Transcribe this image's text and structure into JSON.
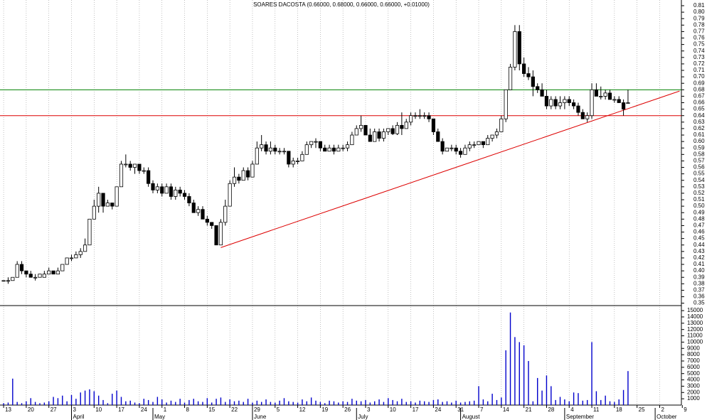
{
  "chart_data": {
    "type": "candlestick",
    "title": "SOARES DACOSTA (0.66000, 0.68000, 0.66000, 0.66000, +0.01000)",
    "xlim": [
      -0.8,
      149.8
    ],
    "ylim": [
      0.3463,
      0.8188
    ],
    "yticks": [
      0.35,
      0.36,
      0.37,
      0.38,
      0.39,
      {
        "value": 0.4,
        "label": "0.40"
      },
      0.41,
      0.42,
      0.43,
      0.44,
      0.45,
      0.46,
      0.47,
      0.48,
      0.49,
      {
        "value": 0.5,
        "label": "0.50"
      },
      0.51,
      0.52,
      0.53,
      0.54,
      0.55,
      0.56,
      0.57,
      0.58,
      0.59,
      {
        "value": 0.6,
        "label": "0.60"
      },
      0.61,
      0.62,
      0.63,
      0.64,
      0.65,
      0.66,
      0.67,
      0.68,
      0.69,
      {
        "value": 0.7,
        "label": "0.70"
      },
      0.71,
      0.72,
      0.73,
      0.74,
      0.75,
      0.76,
      0.77,
      0.78,
      0.79,
      {
        "value": 0.8,
        "label": "0.80"
      },
      0.81
    ],
    "xticks": [
      {
        "value": 0,
        "label": "13"
      },
      {
        "value": 5,
        "label": "20"
      },
      {
        "value": 10,
        "label": "27"
      },
      {
        "value": 15,
        "label": "3"
      },
      {
        "value": 20,
        "label": "10"
      },
      {
        "value": 25,
        "label": "17"
      },
      {
        "value": 30,
        "label": "24"
      },
      {
        "value": 35,
        "label": "1"
      },
      {
        "value": 40,
        "label": "8"
      },
      {
        "value": 45,
        "label": "15"
      },
      {
        "value": 50,
        "label": "22"
      },
      {
        "value": 55,
        "label": "29"
      },
      {
        "value": 60,
        "label": "5"
      },
      {
        "value": 65,
        "label": "12"
      },
      {
        "value": 70,
        "label": "19"
      },
      {
        "value": 75,
        "label": "26"
      },
      {
        "value": 80,
        "label": "3"
      },
      {
        "value": 85,
        "label": "10"
      },
      {
        "value": 90,
        "label": "17"
      },
      {
        "value": 95,
        "label": "24"
      },
      {
        "value": 100,
        "label": "31"
      },
      {
        "value": 105,
        "label": "7"
      },
      {
        "value": 110,
        "label": "14"
      },
      {
        "value": 115,
        "label": "21"
      },
      {
        "value": 120,
        "label": "28"
      },
      {
        "value": 125,
        "label": "4"
      },
      {
        "value": 130,
        "label": "11"
      },
      {
        "value": 135,
        "label": "18"
      },
      {
        "value": 140,
        "label": "25"
      },
      {
        "value": 145,
        "label": "2"
      },
      {
        "value": 150,
        "label": "9"
      }
    ],
    "months": [
      {
        "value": 15,
        "label": "April"
      },
      {
        "value": 33,
        "label": "May"
      },
      {
        "value": 55,
        "label": "June"
      },
      {
        "value": 78,
        "label": "July"
      },
      {
        "value": 101,
        "label": "August"
      },
      {
        "value": 124,
        "label": "September"
      },
      {
        "value": 144,
        "label": "October"
      }
    ],
    "grid": true,
    "up_color": "#ffffff",
    "down_color": "#000000",
    "ohlc": [
      [
        0.385,
        0.385,
        0.385,
        0.385
      ],
      [
        0.385,
        0.39,
        0.38,
        0.385
      ],
      [
        0.385,
        0.39,
        0.385,
        0.39
      ],
      [
        0.39,
        0.415,
        0.39,
        0.41
      ],
      [
        0.41,
        0.415,
        0.395,
        0.4
      ],
      [
        0.4,
        0.4,
        0.39,
        0.395
      ],
      [
        0.395,
        0.4,
        0.39,
        0.39
      ],
      [
        0.39,
        0.395,
        0.385,
        0.39
      ],
      [
        0.39,
        0.395,
        0.39,
        0.395
      ],
      [
        0.39,
        0.4,
        0.39,
        0.395
      ],
      [
        0.395,
        0.405,
        0.395,
        0.4
      ],
      [
        0.4,
        0.4,
        0.395,
        0.395
      ],
      [
        0.395,
        0.405,
        0.395,
        0.4
      ],
      [
        0.4,
        0.41,
        0.4,
        0.41
      ],
      [
        0.41,
        0.42,
        0.41,
        0.42
      ],
      [
        0.42,
        0.425,
        0.415,
        0.42
      ],
      [
        0.42,
        0.43,
        0.42,
        0.425
      ],
      [
        0.425,
        0.435,
        0.42,
        0.43
      ],
      [
        0.43,
        0.45,
        0.43,
        0.44
      ],
      [
        0.44,
        0.48,
        0.44,
        0.48
      ],
      [
        0.48,
        0.51,
        0.48,
        0.5
      ],
      [
        0.5,
        0.53,
        0.49,
        0.52
      ],
      [
        0.52,
        0.52,
        0.49,
        0.5
      ],
      [
        0.5,
        0.51,
        0.5,
        0.505
      ],
      [
        0.505,
        0.505,
        0.495,
        0.5
      ],
      [
        0.5,
        0.53,
        0.5,
        0.53
      ],
      [
        0.53,
        0.57,
        0.53,
        0.565
      ],
      [
        0.565,
        0.58,
        0.56,
        0.565
      ],
      [
        0.565,
        0.57,
        0.555,
        0.56
      ],
      [
        0.56,
        0.565,
        0.55,
        0.565
      ],
      [
        0.565,
        0.565,
        0.55,
        0.555
      ],
      [
        0.555,
        0.56,
        0.55,
        0.555
      ],
      [
        0.555,
        0.56,
        0.53,
        0.535
      ],
      [
        0.535,
        0.54,
        0.52,
        0.525
      ],
      [
        0.525,
        0.535,
        0.52,
        0.53
      ],
      [
        0.53,
        0.535,
        0.515,
        0.52
      ],
      [
        0.52,
        0.535,
        0.52,
        0.53
      ],
      [
        0.53,
        0.535,
        0.51,
        0.515
      ],
      [
        0.515,
        0.53,
        0.51,
        0.525
      ],
      [
        0.525,
        0.53,
        0.515,
        0.52
      ],
      [
        0.52,
        0.525,
        0.51,
        0.515
      ],
      [
        0.515,
        0.52,
        0.5,
        0.505
      ],
      [
        0.505,
        0.51,
        0.49,
        0.49
      ],
      [
        0.49,
        0.5,
        0.485,
        0.495
      ],
      [
        0.495,
        0.5,
        0.48,
        0.48
      ],
      [
        0.48,
        0.485,
        0.47,
        0.475
      ],
      [
        0.475,
        0.475,
        0.465,
        0.47
      ],
      [
        0.47,
        0.47,
        0.44,
        0.44
      ],
      [
        0.44,
        0.48,
        0.44,
        0.475
      ],
      [
        0.475,
        0.51,
        0.47,
        0.5
      ],
      [
        0.5,
        0.54,
        0.5,
        0.535
      ],
      [
        0.535,
        0.56,
        0.53,
        0.545
      ],
      [
        0.545,
        0.55,
        0.535,
        0.54
      ],
      [
        0.54,
        0.56,
        0.54,
        0.555
      ],
      [
        0.555,
        0.56,
        0.54,
        0.545
      ],
      [
        0.545,
        0.57,
        0.545,
        0.565
      ],
      [
        0.565,
        0.6,
        0.565,
        0.59
      ],
      [
        0.59,
        0.61,
        0.585,
        0.595
      ],
      [
        0.595,
        0.6,
        0.58,
        0.585
      ],
      [
        0.585,
        0.6,
        0.58,
        0.59
      ],
      [
        0.59,
        0.595,
        0.58,
        0.585
      ],
      [
        0.585,
        0.59,
        0.58,
        0.585
      ],
      [
        0.585,
        0.59,
        0.58,
        0.585
      ],
      [
        0.585,
        0.585,
        0.56,
        0.565
      ],
      [
        0.565,
        0.575,
        0.56,
        0.57
      ],
      [
        0.57,
        0.575,
        0.565,
        0.57
      ],
      [
        0.57,
        0.585,
        0.57,
        0.58
      ],
      [
        0.58,
        0.6,
        0.58,
        0.595
      ],
      [
        0.595,
        0.6,
        0.59,
        0.6
      ],
      [
        0.6,
        0.605,
        0.59,
        0.6
      ],
      [
        0.6,
        0.6,
        0.585,
        0.59
      ],
      [
        0.59,
        0.595,
        0.585,
        0.585
      ],
      [
        0.585,
        0.595,
        0.585,
        0.59
      ],
      [
        0.59,
        0.595,
        0.58,
        0.585
      ],
      [
        0.585,
        0.595,
        0.585,
        0.59
      ],
      [
        0.59,
        0.595,
        0.585,
        0.59
      ],
      [
        0.59,
        0.6,
        0.585,
        0.595
      ],
      [
        0.595,
        0.615,
        0.595,
        0.61
      ],
      [
        0.61,
        0.625,
        0.61,
        0.62
      ],
      [
        0.62,
        0.64,
        0.615,
        0.625
      ],
      [
        0.625,
        0.625,
        0.61,
        0.61
      ],
      [
        0.61,
        0.62,
        0.6,
        0.6
      ],
      [
        0.6,
        0.62,
        0.6,
        0.615
      ],
      [
        0.615,
        0.62,
        0.6,
        0.605
      ],
      [
        0.605,
        0.62,
        0.6,
        0.615
      ],
      [
        0.615,
        0.62,
        0.61,
        0.62
      ],
      [
        0.62,
        0.625,
        0.61,
        0.612
      ],
      [
        0.612,
        0.63,
        0.61,
        0.625
      ],
      [
        0.625,
        0.645,
        0.61,
        0.62
      ],
      [
        0.62,
        0.635,
        0.62,
        0.63
      ],
      [
        0.63,
        0.645,
        0.625,
        0.64
      ],
      [
        0.64,
        0.645,
        0.635,
        0.64
      ],
      [
        0.64,
        0.65,
        0.635,
        0.64
      ],
      [
        0.64,
        0.645,
        0.635,
        0.64
      ],
      [
        0.64,
        0.645,
        0.63,
        0.635
      ],
      [
        0.635,
        0.635,
        0.61,
        0.615
      ],
      [
        0.615,
        0.62,
        0.6,
        0.6
      ],
      [
        0.6,
        0.605,
        0.58,
        0.585
      ],
      [
        0.585,
        0.59,
        0.585,
        0.59
      ],
      [
        0.59,
        0.595,
        0.585,
        0.59
      ],
      [
        0.59,
        0.595,
        0.58,
        0.585
      ],
      [
        0.585,
        0.59,
        0.575,
        0.58
      ],
      [
        0.58,
        0.595,
        0.58,
        0.59
      ],
      [
        0.59,
        0.6,
        0.585,
        0.595
      ],
      [
        0.595,
        0.6,
        0.59,
        0.595
      ],
      [
        0.595,
        0.6,
        0.595,
        0.6
      ],
      [
        0.6,
        0.6,
        0.59,
        0.595
      ],
      [
        0.595,
        0.61,
        0.595,
        0.605
      ],
      [
        0.605,
        0.61,
        0.6,
        0.61
      ],
      [
        0.61,
        0.62,
        0.605,
        0.615
      ],
      [
        0.615,
        0.64,
        0.615,
        0.635
      ],
      [
        0.635,
        0.68,
        0.63,
        0.68
      ],
      [
        0.68,
        0.72,
        0.68,
        0.715
      ],
      [
        0.715,
        0.78,
        0.71,
        0.77
      ],
      [
        0.77,
        0.78,
        0.71,
        0.72
      ],
      [
        0.72,
        0.73,
        0.7,
        0.705
      ],
      [
        0.705,
        0.715,
        0.695,
        0.7
      ],
      [
        0.7,
        0.71,
        0.67,
        0.685
      ],
      [
        0.685,
        0.69,
        0.675,
        0.68
      ],
      [
        0.68,
        0.69,
        0.67,
        0.67
      ],
      [
        0.67,
        0.68,
        0.65,
        0.655
      ],
      [
        0.655,
        0.67,
        0.65,
        0.665
      ],
      [
        0.665,
        0.67,
        0.65,
        0.655
      ],
      [
        0.655,
        0.67,
        0.65,
        0.66
      ],
      [
        0.66,
        0.67,
        0.65,
        0.665
      ],
      [
        0.665,
        0.67,
        0.655,
        0.66
      ],
      [
        0.66,
        0.665,
        0.65,
        0.655
      ],
      [
        0.655,
        0.66,
        0.64,
        0.645
      ],
      [
        0.645,
        0.65,
        0.635,
        0.635
      ],
      [
        0.635,
        0.645,
        0.63,
        0.64
      ],
      [
        0.64,
        0.69,
        0.635,
        0.68
      ],
      [
        0.68,
        0.69,
        0.67,
        0.67
      ],
      [
        0.67,
        0.685,
        0.665,
        0.67
      ],
      [
        0.67,
        0.68,
        0.665,
        0.675
      ],
      [
        0.675,
        0.68,
        0.665,
        0.665
      ],
      [
        0.665,
        0.67,
        0.66,
        0.665
      ],
      [
        0.665,
        0.67,
        0.66,
        0.66
      ],
      [
        0.66,
        0.665,
        0.64,
        0.65
      ],
      [
        0.66,
        0.68,
        0.66,
        0.66
      ]
    ],
    "levels": [
      {
        "value": 0.68,
        "color": "#008000"
      },
      {
        "value": 0.64,
        "color": "#dd0000"
      }
    ],
    "trendlines": [
      {
        "x": [
          48,
          149.4
        ],
        "y": [
          0.436,
          0.678
        ],
        "color": "#dd0000"
      }
    ],
    "volume": {
      "ylim": [
        0,
        15800
      ],
      "yticks": [
        1000,
        2000,
        3000,
        4000,
        5000,
        6000,
        7000,
        8000,
        9000,
        10000,
        11000,
        12000,
        13000,
        14000,
        15000
      ],
      "color": "#0000cc",
      "values": [
        300,
        400,
        4200,
        500,
        300,
        600,
        1100,
        500,
        300,
        400,
        600,
        1300,
        1100,
        1500,
        600,
        1600,
        1000,
        2000,
        2300,
        2500,
        2200,
        1500,
        800,
        300,
        1800,
        2300,
        1300,
        600,
        700,
        400,
        300,
        1000,
        800,
        500,
        1300,
        900,
        400,
        700,
        500,
        1000,
        400,
        800,
        1000,
        600,
        500,
        1100,
        400,
        1000,
        1200,
        500,
        900,
        600,
        700,
        500,
        1000,
        400,
        700,
        500,
        900,
        500,
        400,
        700,
        1100,
        600,
        500,
        400,
        900,
        600,
        1200,
        700,
        500,
        300,
        700,
        600,
        400,
        600,
        500,
        1000,
        700,
        600,
        800,
        400,
        600,
        900,
        500,
        1100,
        800,
        600,
        1000,
        500,
        600,
        400,
        700,
        600,
        500,
        800,
        900,
        500,
        600,
        400,
        700,
        400,
        500,
        600,
        700,
        3000,
        900,
        600,
        1800,
        800,
        1200,
        8700,
        14700,
        10800,
        10000,
        9500,
        7000,
        600,
        4300,
        2300,
        4700,
        3000,
        800,
        1300,
        900,
        600,
        2000,
        1900,
        700,
        800,
        10000,
        2200,
        800,
        1500,
        600,
        500,
        900,
        2400,
        5400
      ]
    }
  }
}
